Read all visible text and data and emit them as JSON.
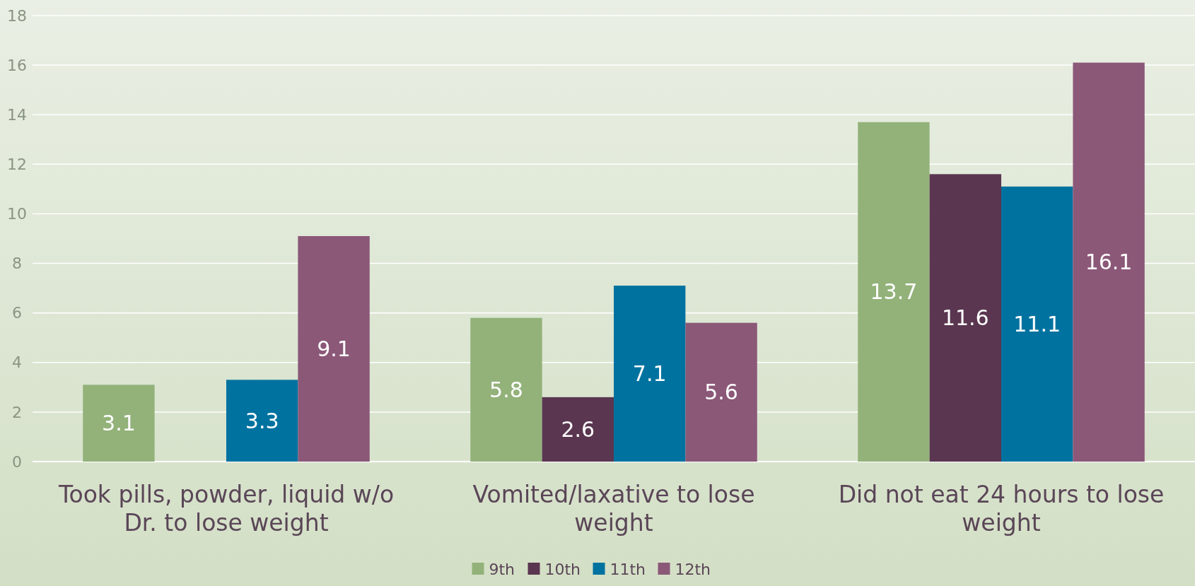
{
  "chart_data": {
    "type": "bar",
    "categories": [
      "Took pills, powder, liquid w/o Dr. to lose weight",
      "Vomited/laxative to lose weight",
      "Did not eat 24 hours to lose weight"
    ],
    "series": [
      {
        "name": "9th",
        "color": "#93b27a",
        "values": [
          3.1,
          5.8,
          13.7
        ]
      },
      {
        "name": "10th",
        "color": "#5a3650",
        "values": [
          null,
          2.6,
          11.6
        ]
      },
      {
        "name": "11th",
        "color": "#0072a0",
        "values": [
          3.3,
          7.1,
          11.1
        ]
      },
      {
        "name": "12th",
        "color": "#8b5878",
        "values": [
          9.1,
          5.6,
          16.1
        ]
      }
    ],
    "ylim": [
      0,
      18
    ],
    "yticks": [
      0,
      2,
      4,
      6,
      8,
      10,
      12,
      14,
      16,
      18
    ],
    "grid": "y",
    "legend": "bottom",
    "data_labels": true
  }
}
